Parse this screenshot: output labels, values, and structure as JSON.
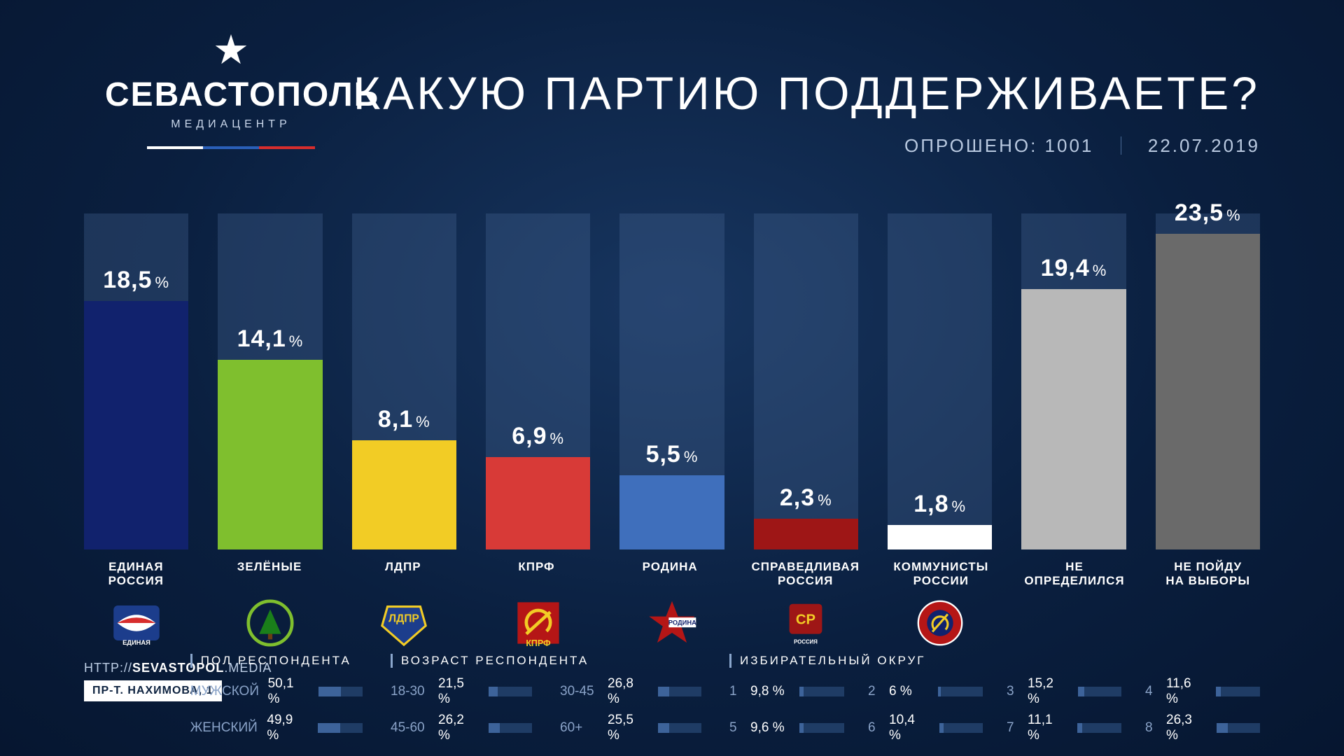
{
  "brand": {
    "name": "СЕВАСТОПОЛЬ",
    "sub": "МЕДИАЦЕНТР"
  },
  "title": "КАКУЮ ПАРТИЮ ПОДДЕРЖИВАЕТЕ?",
  "meta": {
    "sample_label": "ОПРОШЕНО:",
    "sample": "1001",
    "date": "22.07.2019"
  },
  "chart": {
    "type": "bar",
    "bar_bg": "rgba(70,100,145,0.35)",
    "value_max": 25,
    "pct_suffix": "%",
    "columns": [
      {
        "label": "ЕДИНАЯ РОССИЯ",
        "value": 18.5,
        "color": "#11226d",
        "logo": "er"
      },
      {
        "label": "ЗЕЛЁНЫЕ",
        "value": 14.1,
        "color": "#7fbf2e",
        "logo": "green"
      },
      {
        "label": "ЛДПР",
        "value": 8.1,
        "color": "#f2cc25",
        "logo": "ldpr"
      },
      {
        "label": "КПРФ",
        "value": 6.9,
        "color": "#d83a37",
        "logo": "kprf"
      },
      {
        "label": "РОДИНА",
        "value": 5.5,
        "color": "#3f6fbc",
        "logo": "rodina"
      },
      {
        "label": "СПРАВЕДЛИВАЯ РОССИЯ",
        "value": 2.3,
        "color": "#9e1616",
        "logo": "sr"
      },
      {
        "label": "КОММУНИСТЫ РОССИИ",
        "value": 1.8,
        "color": "#ffffff",
        "logo": "kr"
      },
      {
        "label": "НЕ\nОПРЕДЕЛИЛСЯ",
        "value": 19.4,
        "color": "#b8b8b8",
        "logo": ""
      },
      {
        "label": "НЕ ПОЙДУ\nНА ВЫБОРЫ",
        "value": 23.5,
        "color": "#6a6a6a",
        "logo": ""
      }
    ]
  },
  "footer": {
    "site_prefix": "HTTP://",
    "site_bold": "SEVASTOPOL",
    "site_suffix": ".MEDIA",
    "address": "ПР-Т. НАХИМОВА, 1",
    "gender": {
      "head": "ПОЛ  РЕСПОНДЕНТА",
      "rows": [
        {
          "lab": "МУЖСКОЙ",
          "val": "50,1 %",
          "pct": 50.1
        },
        {
          "lab": "ЖЕНСКИЙ",
          "val": "49,9 %",
          "pct": 49.9
        }
      ]
    },
    "age": {
      "head": "ВОЗРАСТ РЕСПОНДЕНТА",
      "rows": [
        {
          "lab": "18-30",
          "val": "21,5 %",
          "pct": 21.5
        },
        {
          "lab": "30-45",
          "val": "26,8 %",
          "pct": 26.8
        },
        {
          "lab": "45-60",
          "val": "26,2 %",
          "pct": 26.2
        },
        {
          "lab": "60+",
          "val": "25,5 %",
          "pct": 25.5
        }
      ]
    },
    "district": {
      "head": "ИЗБИРАТЕЛЬНЫЙ ОКРУГ",
      "rows": [
        {
          "lab": "1",
          "val": "9,8 %",
          "pct": 9.8
        },
        {
          "lab": "2",
          "val": "6 %",
          "pct": 6.0
        },
        {
          "lab": "3",
          "val": "15,2 %",
          "pct": 15.2
        },
        {
          "lab": "4",
          "val": "11,6 %",
          "pct": 11.6
        },
        {
          "lab": "5",
          "val": "9,6 %",
          "pct": 9.6
        },
        {
          "lab": "6",
          "val": "10,4 %",
          "pct": 10.4
        },
        {
          "lab": "7",
          "val": "11,1 %",
          "pct": 11.1
        },
        {
          "lab": "8",
          "val": "26,3 %",
          "pct": 26.3
        }
      ]
    }
  },
  "style": {
    "title_fontsize": 66,
    "pct_fontsize": 34,
    "caption_fontsize": 17,
    "text_color": "#ffffff",
    "muted_color": "#b9c9e0",
    "bg_gradient": [
      "#17355f",
      "#0a1f3f",
      "#061630"
    ]
  }
}
